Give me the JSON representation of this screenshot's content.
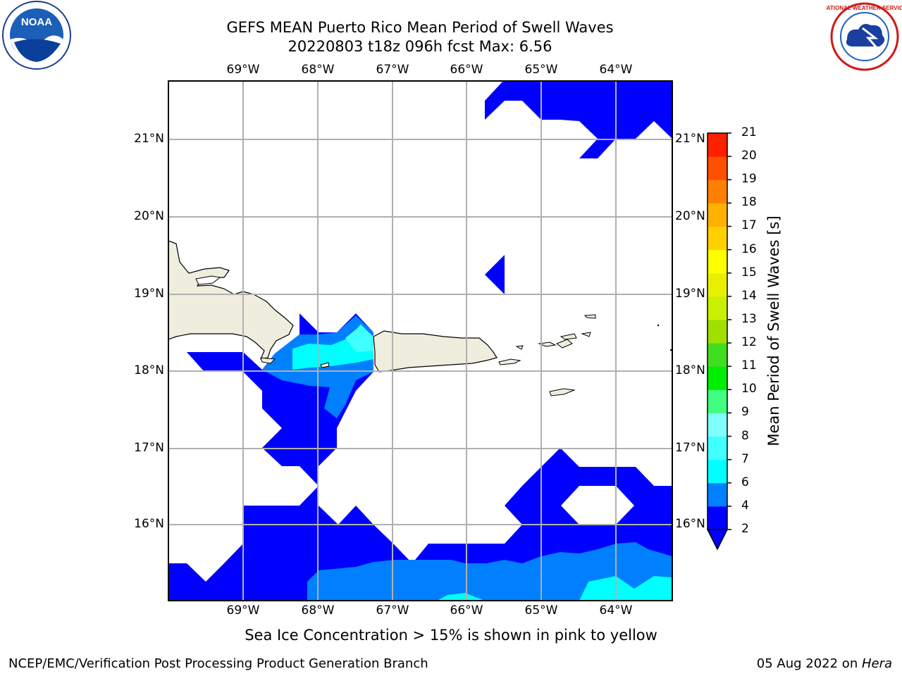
{
  "title": {
    "line1": "GEFS MEAN Puerto Rico Mean Period of Swell Waves",
    "line2": "20220803 t18z 096h fcst   Max: 6.56"
  },
  "map": {
    "lon_labels": [
      "69°W",
      "68°W",
      "67°W",
      "66°W",
      "65°W",
      "64°W"
    ],
    "lat_labels": [
      "21°N",
      "20°N",
      "19°N",
      "18°N",
      "17°N",
      "16°N"
    ],
    "land_color": "#efedde",
    "grid_color": "#b0b0b0"
  },
  "colorbar": {
    "label": "Mean Period of Swell Waves [s]",
    "ticks": [
      "2",
      "4",
      "6",
      "7",
      "8",
      "9",
      "10",
      "11",
      "12",
      "13",
      "14",
      "15",
      "16",
      "17",
      "18",
      "19",
      "20",
      "21"
    ],
    "colors": [
      "#0000ff",
      "#0080ff",
      "#00ffff",
      "#40ffff",
      "#80ffff",
      "#40ff80",
      "#00ee00",
      "#40dd20",
      "#a0e000",
      "#c8f000",
      "#e8f000",
      "#ffff00",
      "#ffd000",
      "#ffb000",
      "#ff8000",
      "#ff5000",
      "#ff2000",
      "#ff0000"
    ]
  },
  "caption": "Sea Ice Concentration > 15% is shown in pink to yellow",
  "footer": {
    "left": "NCEP/EMC/Verification Post Processing Product Generation Branch",
    "right_date": "05 Aug 2022 on ",
    "right_system": "Hera"
  },
  "logos": {
    "noaa_text": "NOAA",
    "nws_text": "NATIONAL WEATHER SERVICE"
  }
}
